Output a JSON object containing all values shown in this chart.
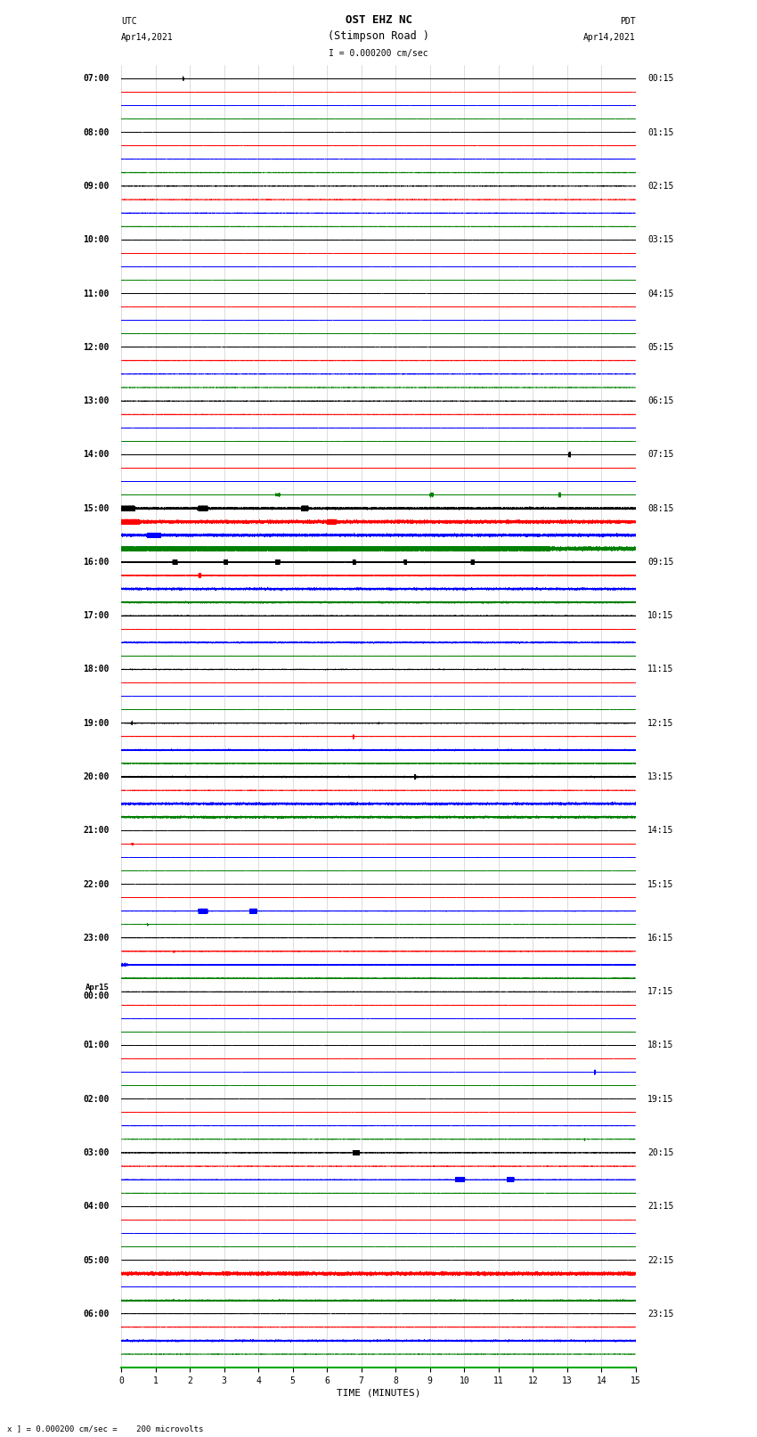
{
  "title_line1": "OST EHZ NC",
  "title_line2": "(Stimpson Road )",
  "title_line3": "I = 0.000200 cm/sec",
  "label_left_top": "UTC",
  "label_left_date": "Apr14,2021",
  "label_right_top": "PDT",
  "label_right_date": "Apr14,2021",
  "xlabel": "TIME (MINUTES)",
  "footer": "x ] = 0.000200 cm/sec =    200 microvolts",
  "utc_hour_labels": [
    "07:00",
    "08:00",
    "09:00",
    "10:00",
    "11:00",
    "12:00",
    "13:00",
    "14:00",
    "15:00",
    "16:00",
    "17:00",
    "18:00",
    "19:00",
    "20:00",
    "21:00",
    "22:00",
    "23:00",
    "Apr15\n00:00",
    "01:00",
    "02:00",
    "03:00",
    "04:00",
    "05:00",
    "06:00"
  ],
  "pdt_hour_labels": [
    "00:15",
    "01:15",
    "02:15",
    "03:15",
    "04:15",
    "05:15",
    "06:15",
    "07:15",
    "08:15",
    "09:15",
    "10:15",
    "11:15",
    "12:15",
    "13:15",
    "14:15",
    "15:15",
    "16:15",
    "17:15",
    "18:15",
    "19:15",
    "20:15",
    "21:15",
    "22:15",
    "23:15"
  ],
  "n_hours": 24,
  "traces_per_hour": 4,
  "minutes": 15,
  "background_color": "#ffffff",
  "line_colors": [
    "black",
    "red",
    "blue",
    "green"
  ],
  "xmin": 0,
  "xmax": 15,
  "xticks": [
    0,
    1,
    2,
    3,
    4,
    5,
    6,
    7,
    8,
    9,
    10,
    11,
    12,
    13,
    14,
    15
  ],
  "title_fontsize": 9,
  "tick_fontsize": 7,
  "label_fontsize": 8,
  "grid_color": "#aaaaaa",
  "grid_minor_color": "#cccccc",
  "spine_color": "#00aa00"
}
